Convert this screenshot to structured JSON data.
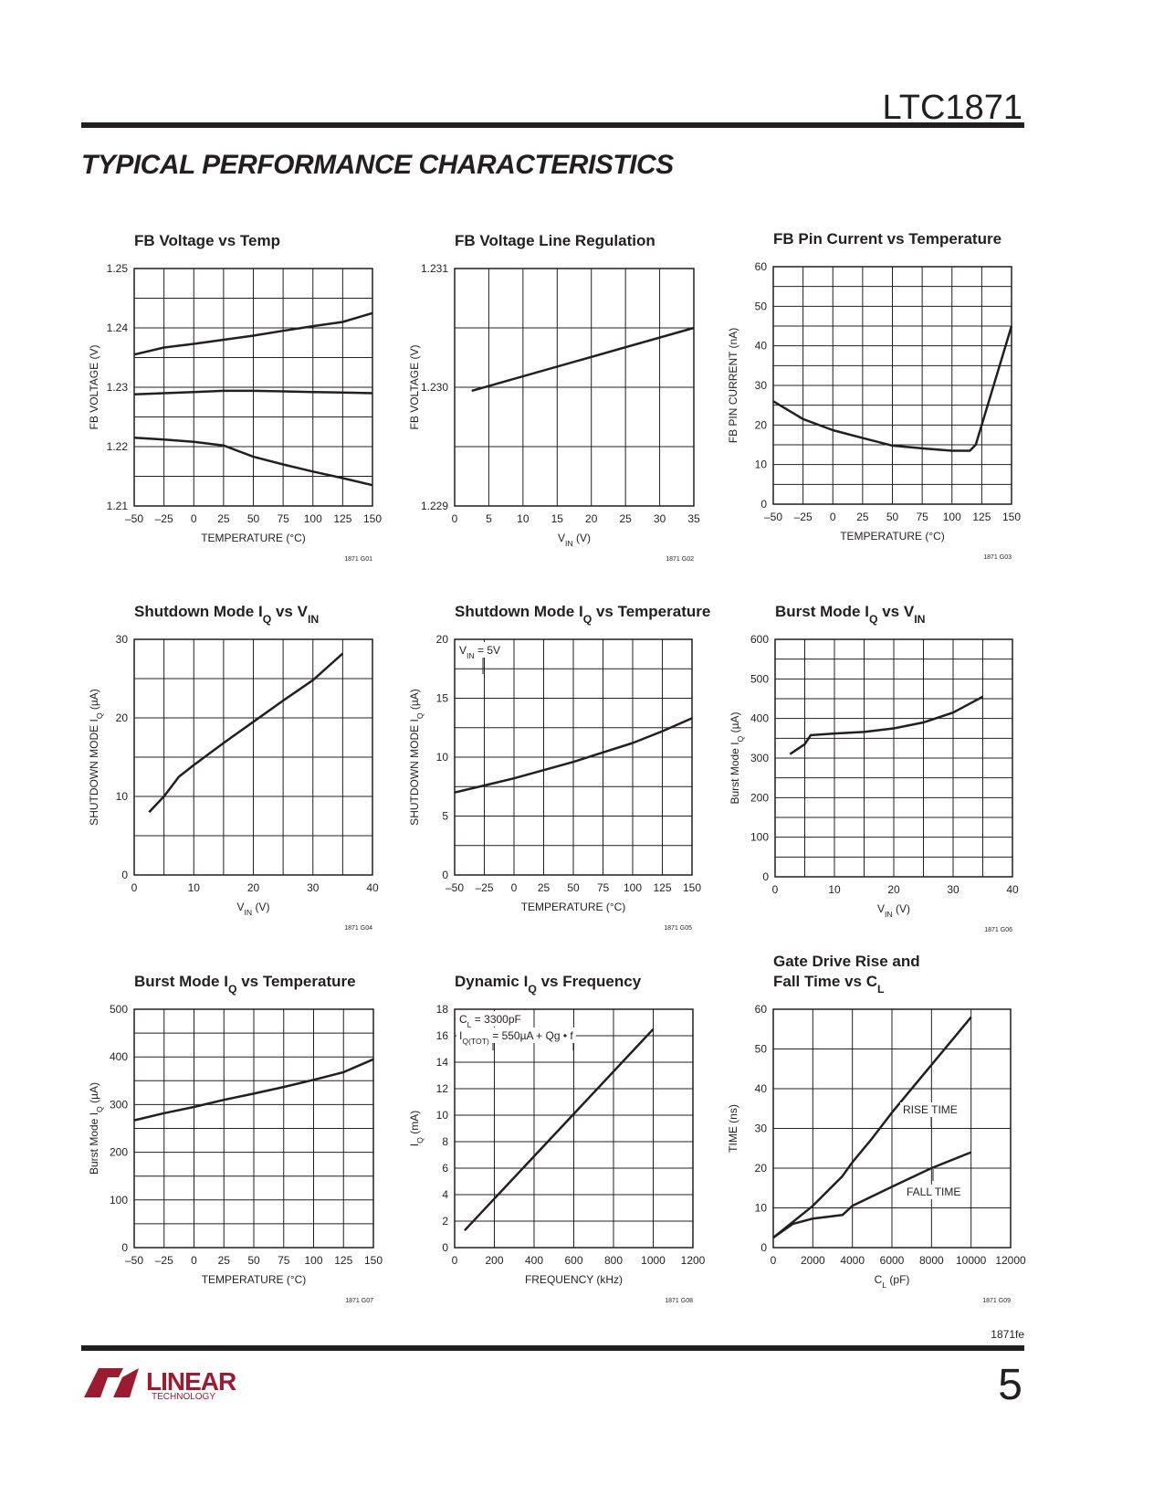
{
  "header": {
    "part": "LTC1871"
  },
  "section_title": "TYPICAL PERFORMANCE CHARACTERISTICS",
  "footer": {
    "doc_code": "1871fe",
    "page": "5",
    "logo": [
      "LINEAR",
      "TECHNOLOGY"
    ]
  },
  "chart_data": [
    {
      "type": "line",
      "title": [
        [
          "FB Voltage vs Temp"
        ]
      ],
      "xlabel": [
        "TEMPERATURE (°C)"
      ],
      "ylabel": [
        "FB VOLTAGE (V)"
      ],
      "code": "1871 G01",
      "xlim": [
        -50,
        150
      ],
      "xticks": [
        {
          "value": -50,
          "label": "–50"
        },
        {
          "value": -25,
          "label": "–25"
        },
        0,
        25,
        50,
        75,
        100,
        125,
        150
      ],
      "ylim": [
        1.21,
        1.25
      ],
      "yticks": [
        1.21,
        1.22,
        1.23,
        1.24,
        1.25
      ],
      "yminor": [
        1.215,
        1.225,
        1.235,
        1.245
      ],
      "grid": true,
      "series": [
        {
          "color": "#231f20",
          "x": [
            -50,
            -25,
            0,
            25,
            50,
            75,
            100,
            125,
            150
          ],
          "values": [
            1.2355,
            1.2367,
            1.2373,
            1.238,
            1.2387,
            1.2395,
            1.2403,
            1.241,
            1.2425
          ]
        },
        {
          "color": "#231f20",
          "x": [
            -50,
            -25,
            0,
            25,
            50,
            75,
            100,
            125,
            150
          ],
          "values": [
            1.2288,
            1.229,
            1.2292,
            1.2294,
            1.2294,
            1.2293,
            1.2292,
            1.2291,
            1.229
          ]
        },
        {
          "color": "#231f20",
          "x": [
            -50,
            -25,
            0,
            25,
            50,
            75,
            100,
            125,
            150
          ],
          "values": [
            1.2215,
            1.2212,
            1.2208,
            1.2202,
            1.2183,
            1.217,
            1.2158,
            1.2147,
            1.2135
          ]
        }
      ]
    },
    {
      "type": "line",
      "title": [
        [
          "FB Voltage Line Regulation"
        ]
      ],
      "xlabel": [
        "V",
        "IN",
        " (V)"
      ],
      "ylabel": [
        "FB VOLTAGE (V)"
      ],
      "code": "1871 G02",
      "xlim": [
        0,
        35
      ],
      "xticks": [
        0,
        5,
        10,
        15,
        20,
        25,
        30,
        35
      ],
      "ylim": [
        1.229,
        1.231
      ],
      "yticks": [
        1.229,
        {
          "value": 1.23,
          "label": "1.230"
        },
        1.231
      ],
      "yminor": [
        1.2295,
        1.2305
      ],
      "grid": true,
      "series": [
        {
          "color": "#231f20",
          "x": [
            2.5,
            35
          ],
          "values": [
            1.22997,
            1.2305
          ]
        }
      ]
    },
    {
      "type": "line",
      "title": [
        [
          "FB Pin Current vs Temperature"
        ]
      ],
      "xlabel": [
        "TEMPERATURE (°C)"
      ],
      "ylabel": [
        "FB PIN CURRENT (nA)"
      ],
      "code": "1871 G03",
      "xlim": [
        -50,
        150
      ],
      "xticks": [
        {
          "value": -50,
          "label": "–50"
        },
        {
          "value": -25,
          "label": "–25"
        },
        0,
        25,
        50,
        75,
        100,
        125,
        150
      ],
      "ylim": [
        0,
        60
      ],
      "yticks": [
        0,
        10,
        20,
        30,
        40,
        50,
        60
      ],
      "yminor": [
        5,
        15,
        25,
        35,
        45,
        55
      ],
      "grid": true,
      "series": [
        {
          "color": "#231f20",
          "x": [
            -50,
            -25,
            0,
            25,
            50,
            75,
            100,
            115,
            120,
            150
          ],
          "values": [
            26,
            21.5,
            18.7,
            16.7,
            14.8,
            14.1,
            13.5,
            13.5,
            15,
            45
          ]
        }
      ]
    },
    {
      "type": "line",
      "title": [
        [
          "Shutdown Mode I",
          "Q",
          " vs V",
          "IN"
        ]
      ],
      "xlabel": [
        "V",
        "IN",
        " (V)"
      ],
      "ylabel": [
        "SHUTDOWN MODE I",
        "Q",
        " (µA)"
      ],
      "code": "1871 G04",
      "xlim": [
        0,
        40
      ],
      "xticks": [
        0,
        10,
        20,
        30,
        40
      ],
      "xminor": [
        5,
        15,
        25,
        35
      ],
      "ylim": [
        0,
        30
      ],
      "yticks": [
        0,
        10,
        20,
        30
      ],
      "yminor": [
        5,
        15,
        25
      ],
      "grid": true,
      "series": [
        {
          "color": "#231f20",
          "x": [
            2.5,
            5,
            7.5,
            10,
            15,
            20,
            25,
            30,
            35
          ],
          "values": [
            8,
            10,
            12.5,
            14,
            16.8,
            19.5,
            22.2,
            24.8,
            28.2
          ]
        }
      ]
    },
    {
      "type": "line",
      "title": [
        [
          "Shutdown Mode I",
          "Q",
          " vs Temperature"
        ]
      ],
      "xlabel": [
        "TEMPERATURE (°C)"
      ],
      "ylabel": [
        "SHUTDOWN MODE I",
        "Q",
        " (µA)"
      ],
      "code": "1871 G05",
      "xlim": [
        -50,
        150
      ],
      "xticks": [
        {
          "value": -50,
          "label": "–50"
        },
        {
          "value": -25,
          "label": "–25"
        },
        0,
        25,
        50,
        75,
        100,
        125,
        150
      ],
      "ylim": [
        0,
        20
      ],
      "yticks": [
        0,
        5,
        10,
        15,
        20
      ],
      "yminor": [
        2.5,
        7.5,
        12.5,
        17.5
      ],
      "grid": true,
      "annotations": [
        [
          "V",
          "IN",
          " = 5V"
        ]
      ],
      "series": [
        {
          "color": "#231f20",
          "x": [
            -50,
            -25,
            0,
            25,
            50,
            75,
            100,
            125,
            150
          ],
          "values": [
            7,
            7.6,
            8.2,
            8.9,
            9.6,
            10.4,
            11.2,
            12.2,
            13.3
          ]
        }
      ]
    },
    {
      "type": "line",
      "title": [
        [
          "Burst Mode I",
          "Q",
          " vs V",
          "IN"
        ]
      ],
      "xlabel": [
        "V",
        "IN",
        " (V)"
      ],
      "ylabel": [
        "Burst Mode I",
        "Q",
        " (µA)"
      ],
      "code": "1871 G06",
      "xlim": [
        0,
        40
      ],
      "xticks": [
        0,
        10,
        20,
        30,
        40
      ],
      "xminor": [
        5,
        15,
        25,
        35
      ],
      "ylim": [
        0,
        600
      ],
      "yticks": [
        0,
        100,
        200,
        300,
        400,
        500,
        600
      ],
      "yminor": [
        50,
        150,
        250,
        350,
        450,
        550
      ],
      "grid": true,
      "series": [
        {
          "color": "#231f20",
          "x": [
            2.5,
            5,
            6,
            10,
            15,
            20,
            25,
            30,
            35
          ],
          "values": [
            310,
            335,
            358,
            362,
            366,
            375,
            390,
            415,
            455
          ]
        }
      ]
    },
    {
      "type": "line",
      "title": [
        [
          "Burst Mode I",
          "Q",
          " vs Temperature"
        ]
      ],
      "xlabel": [
        "TEMPERATURE (°C)"
      ],
      "ylabel": [
        "Burst Mode I",
        "Q",
        " (µA)"
      ],
      "code": "1871 G07",
      "xlim": [
        -50,
        150
      ],
      "xticks": [
        {
          "value": -50,
          "label": "–50"
        },
        {
          "value": -25,
          "label": "–25"
        },
        0,
        25,
        50,
        75,
        100,
        125,
        150
      ],
      "ylim": [
        0,
        500
      ],
      "yticks": [
        0,
        100,
        200,
        300,
        400,
        500
      ],
      "yminor": [
        50,
        150,
        250,
        350,
        450
      ],
      "grid": true,
      "series": [
        {
          "color": "#231f20",
          "x": [
            -50,
            -25,
            0,
            25,
            50,
            75,
            100,
            125,
            150
          ],
          "values": [
            267,
            282,
            295,
            310,
            323,
            337,
            352,
            368,
            395
          ]
        }
      ]
    },
    {
      "type": "line",
      "title": [
        [
          "Dynamic I",
          "Q",
          " vs Frequency"
        ]
      ],
      "xlabel": [
        "FREQUENCY (kHz)"
      ],
      "ylabel": [
        "I",
        "Q",
        " (mA)"
      ],
      "code": "1871 G08",
      "xlim": [
        0,
        1200
      ],
      "xticks": [
        0,
        200,
        400,
        600,
        800,
        1000,
        1200
      ],
      "ylim": [
        0,
        18
      ],
      "yticks": [
        0,
        2,
        4,
        6,
        8,
        10,
        12,
        14,
        16,
        18
      ],
      "grid": true,
      "annotations": [
        [
          "C",
          "L",
          " = 3300pF"
        ],
        [
          "I",
          "Q(TOT)",
          " = 550µA + Qg • f"
        ]
      ],
      "series": [
        {
          "color": "#231f20",
          "x": [
            50,
            1000
          ],
          "values": [
            1.3,
            16.5
          ]
        }
      ]
    },
    {
      "type": "line",
      "title": [
        [
          "Gate Drive Rise and"
        ],
        [
          "Fall Time vs C",
          "L"
        ]
      ],
      "xlabel": [
        "C",
        "L",
        " (pF)"
      ],
      "ylabel": [
        "TIME (ns)"
      ],
      "code": "1871 G09",
      "xlim": [
        0,
        12000
      ],
      "xticks": [
        0,
        2000,
        4000,
        6000,
        8000,
        10000,
        12000
      ],
      "ylim": [
        0,
        60
      ],
      "yticks": [
        0,
        10,
        20,
        30,
        40,
        50,
        60
      ],
      "grid": true,
      "series": [
        {
          "name": "RISE TIME",
          "color": "#231f20",
          "x": [
            0,
            2000,
            3500,
            4000,
            5000,
            6000,
            8000,
            10000
          ],
          "values": [
            2.5,
            10.5,
            18,
            21.5,
            27.5,
            34,
            46,
            58
          ]
        },
        {
          "name": "FALL TIME",
          "color": "#231f20",
          "x": [
            0,
            1000,
            2000,
            3500,
            4000,
            6000,
            8000,
            10000
          ],
          "values": [
            2.5,
            6,
            7.3,
            8.2,
            10.5,
            15.3,
            20,
            24
          ]
        }
      ]
    }
  ]
}
